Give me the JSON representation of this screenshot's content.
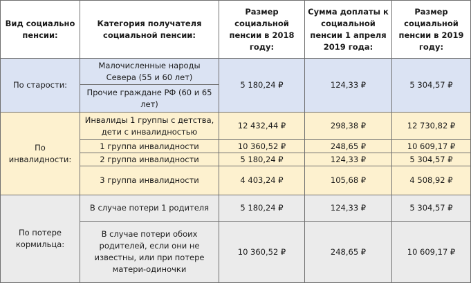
{
  "headers": [
    "Вид социально пенсии:",
    "Категория получателя социальной пенсии:",
    "Размер социальной пенсии в 2018 году:",
    "Сумма доплаты к социальной пенсии 1 апреля 2019 года:",
    "Размер социальной пенсии в 2019 году:"
  ],
  "groups": [
    {
      "type": "По старости:",
      "rows": [
        {
          "category": "Малочисленные народы Севера (55 и 60 лет)"
        },
        {
          "category": "Прочие граждане РФ (60 и 65 лет)"
        }
      ],
      "pension_2018": "5 180,24 ₽",
      "supplement": "124,33 ₽",
      "pension_2019": "5 304,57 ₽"
    },
    {
      "type": "По инвалидности:",
      "rows": [
        {
          "category": "Инвалиды 1 группы с детства, дети с инвалидностью",
          "pension_2018": "12 432,44 ₽",
          "supplement": "298,38 ₽",
          "pension_2019": "12 730,82 ₽"
        },
        {
          "category": "1 группа инвалидности",
          "pension_2018": "10 360,52 ₽",
          "supplement": "248,65 ₽",
          "pension_2019": "10 609,17 ₽"
        },
        {
          "category": "2 группа инвалидности",
          "pension_2018": "5 180,24 ₽",
          "supplement": "124,33 ₽",
          "pension_2019": "5 304,57 ₽"
        },
        {
          "category": "3 группа инвалидности",
          "pension_2018": "4 403,24 ₽",
          "supplement": "105,68 ₽",
          "pension_2019": "4 508,92 ₽"
        }
      ]
    },
    {
      "type": "По потере кормильца:",
      "rows": [
        {
          "category": "В случае потери 1 родителя",
          "pension_2018": "5 180,24 ₽",
          "supplement": "124,33 ₽",
          "pension_2019": "5 304,57 ₽"
        },
        {
          "category": "В случае потери обоих родителей, если они не известны, или при потере матери-одиночки",
          "pension_2018": "10 360,52 ₽",
          "supplement": "248,65 ₽",
          "pension_2019": "10 609,17 ₽"
        }
      ]
    }
  ],
  "colors": {
    "old_age_bg": "#dbe3f3",
    "disability_bg": "#fdf1cf",
    "survivor_bg": "#ebebeb",
    "border": "#6f6f6f"
  }
}
